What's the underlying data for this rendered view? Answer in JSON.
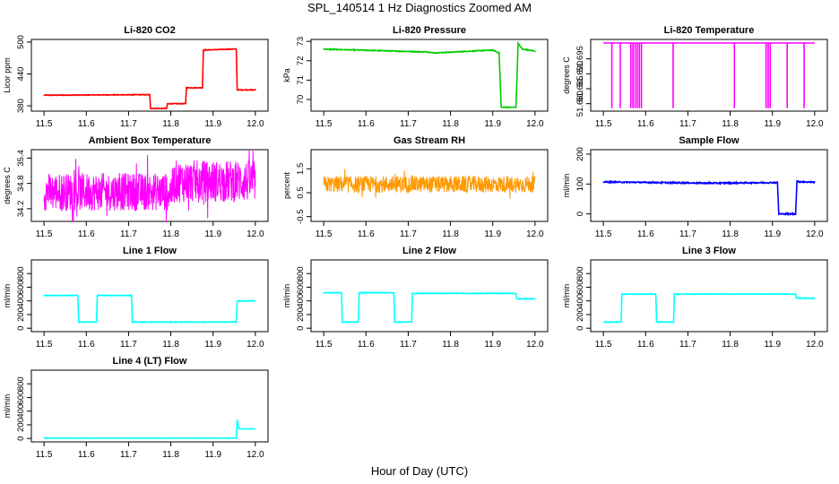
{
  "figure": {
    "title": "SPL_140514  1 Hz Diagnostics Zoomed AM",
    "xlabel": "Hour of Day (UTC)"
  },
  "chart_data": [
    {
      "id": "co2",
      "type": "line",
      "title": "Li-820 CO2",
      "ylabel": "Licor ppm",
      "color": "#ff0000",
      "noise": 0.6,
      "xlim": [
        11.47,
        12.03
      ],
      "ylim": [
        370,
        505
      ],
      "xticks": [
        11.5,
        11.6,
        11.7,
        11.8,
        11.9,
        12.0
      ],
      "yticks": [
        380,
        440,
        500
      ],
      "series": [
        {
          "x": [
            11.5,
            11.75,
            11.752,
            11.79,
            11.792,
            11.835,
            11.837,
            11.875,
            11.877,
            11.955,
            11.957,
            12.0
          ],
          "y": [
            400,
            401,
            375,
            375,
            384,
            384,
            414,
            414,
            485,
            487,
            410,
            410
          ]
        }
      ]
    },
    {
      "id": "pressure",
      "type": "line",
      "title": "Li-820 Pressure",
      "ylabel": "kPa",
      "color": "#00cc00",
      "noise": 0.02,
      "xlim": [
        11.47,
        12.03
      ],
      "ylim": [
        69.4,
        73.1
      ],
      "xticks": [
        11.5,
        11.6,
        11.7,
        11.8,
        11.9,
        12.0
      ],
      "yticks": [
        70,
        71,
        72,
        73
      ],
      "series": [
        {
          "x": [
            11.5,
            11.75,
            11.76,
            11.9,
            11.915,
            11.92,
            11.93,
            11.955,
            11.96,
            11.97,
            12.0
          ],
          "y": [
            72.6,
            72.45,
            72.4,
            72.55,
            72.4,
            69.6,
            69.6,
            69.6,
            72.9,
            72.6,
            72.5
          ]
        }
      ]
    },
    {
      "id": "temperature",
      "type": "line",
      "title": "Li-820 Temperature",
      "ylabel": "degrees C",
      "color": "#ff00ff",
      "noise": 0,
      "xlim": [
        11.47,
        12.03
      ],
      "ylim": [
        51.6775,
        51.7015
      ],
      "xticks": [
        11.5,
        11.6,
        11.7,
        11.8,
        11.9,
        12.0
      ],
      "yticks": [
        51.68,
        51.685,
        51.69,
        51.695
      ],
      "ytick_labels": [
        "51.680",
        "51.685",
        "51.690",
        "51.695"
      ],
      "baseline": 51.7003,
      "drops": [
        11.52,
        11.54,
        11.565,
        11.57,
        11.575,
        11.58,
        11.585,
        11.59,
        11.665,
        11.81,
        11.885,
        11.89,
        11.895,
        11.935,
        11.975
      ],
      "drop_to": 51.6785
    },
    {
      "id": "ambient",
      "type": "noisy-band",
      "title": "Ambient Box Temperature",
      "ylabel": "degrees C",
      "color": "#ff00ff",
      "xlim": [
        11.47,
        12.03
      ],
      "ylim": [
        33.9,
        35.6
      ],
      "xticks": [
        11.5,
        11.6,
        11.7,
        11.8,
        11.9,
        12.0
      ],
      "yticks": [
        34.2,
        34.8,
        35.4
      ],
      "band": {
        "x": [
          11.5,
          11.8,
          11.81,
          12.0
        ],
        "center": [
          34.6,
          34.6,
          34.85,
          34.85
        ],
        "amp": [
          0.45,
          0.45,
          0.5,
          0.5
        ]
      }
    },
    {
      "id": "rh",
      "type": "noisy-band",
      "title": "Gas Stream RH",
      "ylabel": "percent",
      "color": "#ff9900",
      "xlim": [
        11.47,
        12.03
      ],
      "ylim": [
        -0.7,
        2.3
      ],
      "xticks": [
        11.5,
        11.6,
        11.7,
        11.8,
        11.9,
        12.0
      ],
      "yticks": [
        -0.5,
        0.5,
        1.5
      ],
      "band": {
        "x": [
          11.5,
          12.0
        ],
        "center": [
          0.85,
          0.85
        ],
        "amp": [
          0.35,
          0.35
        ]
      }
    },
    {
      "id": "sample-flow",
      "type": "line",
      "title": "Sample Flow",
      "ylabel": "ml/min",
      "color": "#0000ff",
      "noise": 2,
      "xlim": [
        11.47,
        12.03
      ],
      "ylim": [
        -25,
        215
      ],
      "xticks": [
        11.5,
        11.6,
        11.7,
        11.8,
        11.9,
        12.0
      ],
      "yticks": [
        0,
        100,
        200
      ],
      "series": [
        {
          "x": [
            11.5,
            11.75,
            11.912,
            11.915,
            11.955,
            11.958,
            12.0
          ],
          "y": [
            107,
            103,
            105,
            0,
            0,
            108,
            106
          ]
        }
      ]
    },
    {
      "id": "line1-flow",
      "type": "line",
      "title": "Line 1 Flow",
      "ylabel": "ml/min",
      "color": "#00ffff",
      "noise": 4,
      "xlim": [
        11.47,
        12.03
      ],
      "ylim": [
        -50,
        1000
      ],
      "xticks": [
        11.5,
        11.6,
        11.7,
        11.8,
        11.9,
        12.0
      ],
      "yticks": [
        0,
        200,
        400,
        600,
        800
      ],
      "series": [
        {
          "x": [
            11.5,
            11.58,
            11.582,
            11.624,
            11.626,
            11.707,
            11.709,
            11.955,
            11.957,
            12.0
          ],
          "y": [
            480,
            480,
            90,
            90,
            480,
            480,
            90,
            90,
            400,
            400
          ]
        }
      ]
    },
    {
      "id": "line2-flow",
      "type": "line",
      "title": "Line 2 Flow",
      "ylabel": "ml/min",
      "color": "#00ffff",
      "noise": 4,
      "xlim": [
        11.47,
        12.03
      ],
      "ylim": [
        -50,
        1000
      ],
      "xticks": [
        11.5,
        11.6,
        11.7,
        11.8,
        11.9,
        12.0
      ],
      "yticks": [
        0,
        200,
        400,
        600,
        800
      ],
      "series": [
        {
          "x": [
            11.5,
            11.542,
            11.544,
            11.582,
            11.584,
            11.666,
            11.668,
            11.708,
            11.71,
            11.955,
            11.957,
            12.0
          ],
          "y": [
            520,
            520,
            90,
            90,
            520,
            520,
            90,
            90,
            510,
            510,
            430,
            430
          ]
        }
      ]
    },
    {
      "id": "line3-flow",
      "type": "line",
      "title": "Line 3 Flow",
      "ylabel": "ml/min",
      "color": "#00ffff",
      "noise": 4,
      "xlim": [
        11.47,
        12.03
      ],
      "ylim": [
        -50,
        1000
      ],
      "xticks": [
        11.5,
        11.6,
        11.7,
        11.8,
        11.9,
        12.0
      ],
      "yticks": [
        0,
        200,
        400,
        600,
        800
      ],
      "series": [
        {
          "x": [
            11.5,
            11.542,
            11.544,
            11.624,
            11.626,
            11.666,
            11.668,
            11.955,
            11.957,
            12.0
          ],
          "y": [
            90,
            90,
            500,
            500,
            90,
            90,
            500,
            500,
            440,
            440
          ]
        }
      ]
    },
    {
      "id": "line4-flow",
      "type": "line",
      "title": "Line 4 (LT) Flow",
      "ylabel": "ml/min",
      "color": "#00ffff",
      "noise": 1,
      "xlim": [
        11.47,
        12.03
      ],
      "ylim": [
        -50,
        1000
      ],
      "xticks": [
        11.5,
        11.6,
        11.7,
        11.8,
        11.9,
        12.0
      ],
      "yticks": [
        0,
        200,
        400,
        600,
        800
      ],
      "series": [
        {
          "x": [
            11.5,
            11.955,
            11.957,
            11.96,
            11.963,
            12.0
          ],
          "y": [
            5,
            5,
            280,
            160,
            140,
            140
          ]
        }
      ]
    }
  ]
}
